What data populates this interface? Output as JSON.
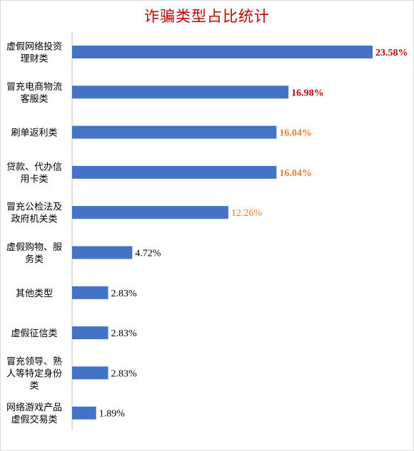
{
  "chart_data": {
    "type": "bar",
    "orientation": "horizontal",
    "title": "诈骗类型占比统计",
    "categories": [
      [
        "虚假网络投资",
        "理财类"
      ],
      [
        "冒充电商物流",
        "客服类"
      ],
      [
        "刷单返利类"
      ],
      [
        "贷款、代办信",
        "用卡类"
      ],
      [
        "冒充公检法及",
        "政府机关类"
      ],
      [
        "虚假购物、服",
        "务类"
      ],
      [
        "其他类型"
      ],
      [
        "虚假征信类"
      ],
      [
        "冒充领导、熟",
        "人等特定身份",
        "类"
      ],
      [
        "网络游戏产品",
        "虚假交易类"
      ]
    ],
    "values": [
      23.58,
      16.98,
      16.04,
      16.04,
      12.26,
      4.72,
      2.83,
      2.83,
      2.83,
      1.89
    ],
    "labels": [
      "23.58%",
      "16.98%",
      "16.04%",
      "16.04%",
      "12.26%",
      "4.72%",
      "2.83%",
      "2.83%",
      "2.83%",
      "1.89%"
    ],
    "label_colors": [
      "#c00000",
      "#c00000",
      "#ed7d31",
      "#ed7d31",
      "#ed7d31",
      "#000000",
      "#000000",
      "#000000",
      "#000000",
      "#000000"
    ],
    "label_bold": [
      true,
      true,
      true,
      true,
      false,
      false,
      false,
      false,
      false,
      false
    ],
    "bar_color": "#4472c4",
    "title_color": "#c00000",
    "xlim": [
      0,
      23.58
    ],
    "grid": false,
    "legend": "none"
  }
}
